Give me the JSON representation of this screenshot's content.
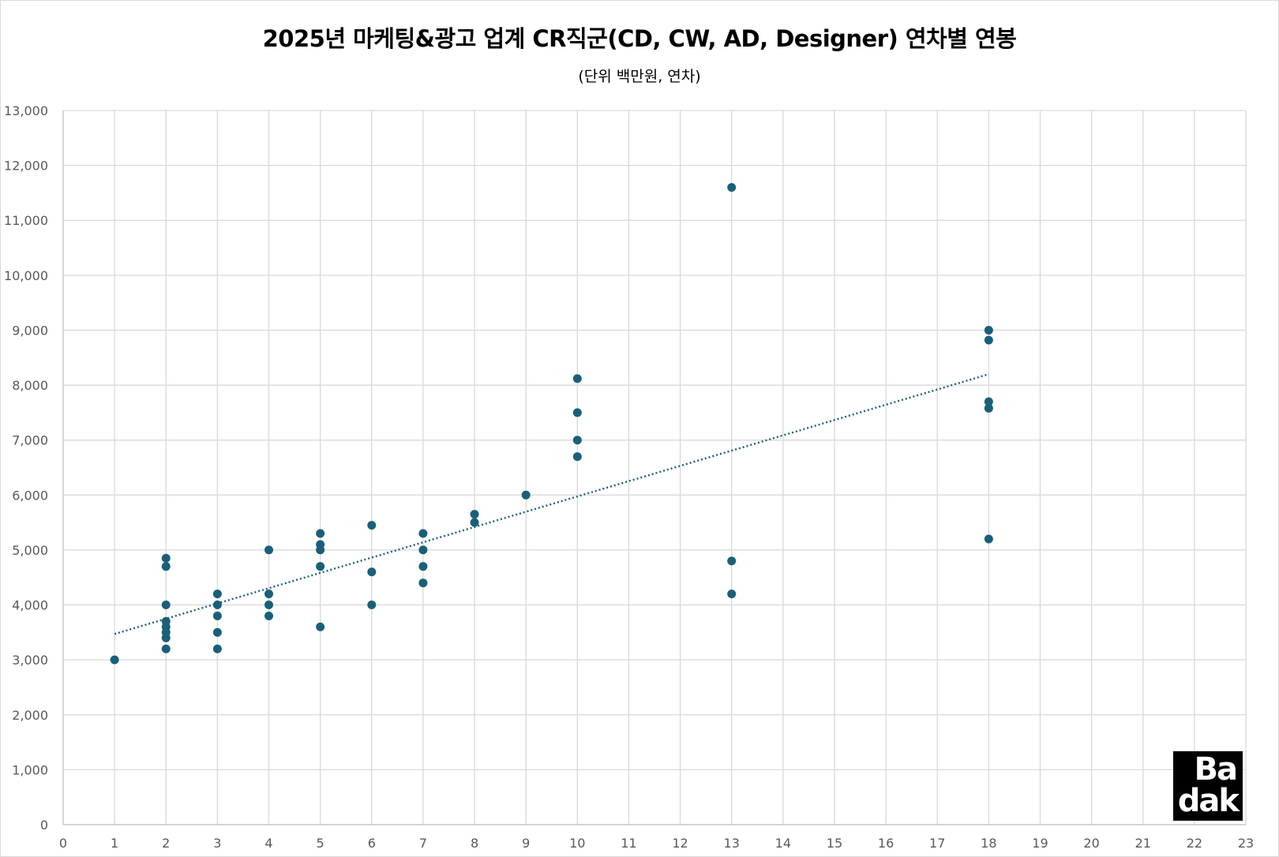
{
  "chart_data": {
    "type": "scatter",
    "title": "2025년 마케팅&광고 업계 CR직군(CD, CW, AD, Designer) 연차별 연봉",
    "subtitle": "(단위 백만원, 연차)",
    "xlabel": "",
    "ylabel": "",
    "xlim": [
      0,
      23
    ],
    "ylim": [
      0,
      13000
    ],
    "x_ticks": [
      "0",
      "1",
      "2",
      "3",
      "4",
      "5",
      "6",
      "7",
      "8",
      "9",
      "10",
      "11",
      "12",
      "13",
      "14",
      "15",
      "16",
      "17",
      "18",
      "19",
      "20",
      "21",
      "22",
      "23"
    ],
    "y_ticks": [
      "0",
      "1,000",
      "2,000",
      "3,000",
      "4,000",
      "5,000",
      "6,000",
      "7,000",
      "8,000",
      "9,000",
      "10,000",
      "11,000",
      "12,000",
      "13,000"
    ],
    "grid": true,
    "legend": "none",
    "series": [
      {
        "color": "#1a5f7a",
        "points": [
          [
            1,
            3000
          ],
          [
            2,
            4850
          ],
          [
            2,
            4700
          ],
          [
            2,
            4000
          ],
          [
            2,
            3700
          ],
          [
            2,
            3600
          ],
          [
            2,
            3500
          ],
          [
            2,
            3400
          ],
          [
            2,
            3200
          ],
          [
            3,
            4200
          ],
          [
            3,
            4000
          ],
          [
            3,
            3800
          ],
          [
            3,
            3500
          ],
          [
            3,
            3200
          ],
          [
            4,
            5000
          ],
          [
            4,
            4200
          ],
          [
            4,
            4000
          ],
          [
            4,
            3800
          ],
          [
            5,
            5300
          ],
          [
            5,
            5100
          ],
          [
            5,
            5000
          ],
          [
            5,
            4700
          ],
          [
            5,
            3600
          ],
          [
            6,
            5450
          ],
          [
            6,
            4600
          ],
          [
            6,
            4000
          ],
          [
            7,
            5300
          ],
          [
            7,
            5000
          ],
          [
            7,
            4700
          ],
          [
            7,
            4400
          ],
          [
            8,
            5650
          ],
          [
            8,
            5500
          ],
          [
            9,
            6000
          ],
          [
            10,
            8120
          ],
          [
            10,
            7500
          ],
          [
            10,
            7000
          ],
          [
            10,
            6700
          ],
          [
            13,
            11600
          ],
          [
            13,
            4800
          ],
          [
            13,
            4200
          ],
          [
            18,
            9000
          ],
          [
            18,
            8820
          ],
          [
            18,
            7700
          ],
          [
            18,
            7580
          ],
          [
            18,
            5200
          ]
        ]
      }
    ],
    "trendline": {
      "type": "linear",
      "style": "dotted",
      "color": "#1a5f7a",
      "x": [
        1,
        18
      ],
      "y": [
        3470,
        8200
      ]
    }
  },
  "logo": {
    "line1": "Ba",
    "line2": "dak"
  }
}
